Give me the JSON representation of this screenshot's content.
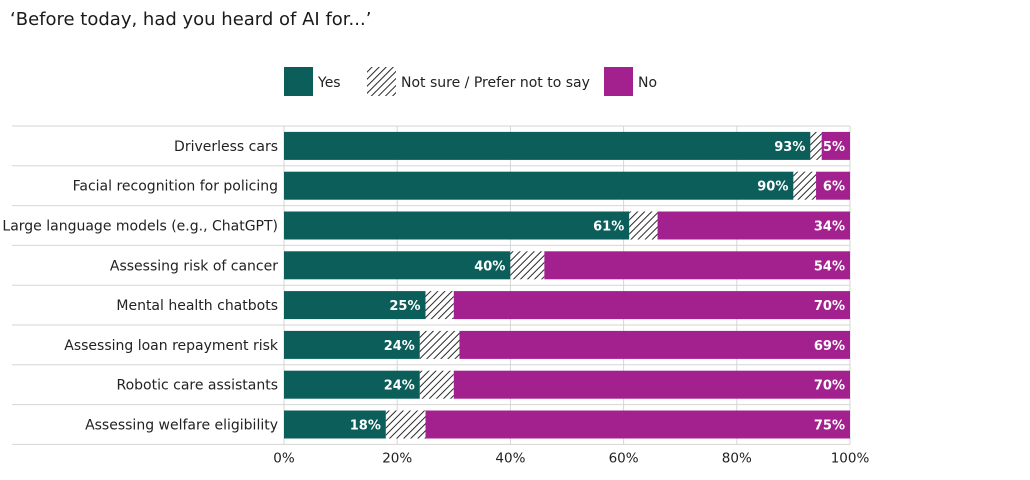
{
  "chart_data": {
    "type": "bar",
    "orientation": "horizontal",
    "stacked": true,
    "title": "‘Before today, had you heard of AI for...’",
    "categories": [
      "Driverless cars",
      "Facial recognition for policing",
      "Large language models (e.g., ChatGPT)",
      "Assessing risk of cancer",
      "Mental health chatbots",
      "Assessing loan repayment risk",
      "Robotic care assistants",
      "Assessing welfare eligibility"
    ],
    "series": [
      {
        "name": "Yes",
        "color": "#0b5e5a",
        "pattern": "solid",
        "values": [
          93,
          90,
          61,
          40,
          25,
          24,
          24,
          18
        ],
        "labels": [
          "93%",
          "90%",
          "61%",
          "40%",
          "25%",
          "24%",
          "24%",
          "18%"
        ]
      },
      {
        "name": "Not sure / Prefer not to say",
        "color": "#222222",
        "pattern": "hatched",
        "values": [
          2,
          4,
          5,
          6,
          5,
          7,
          6,
          7
        ],
        "labels": [
          "",
          "",
          "",
          "",
          "",
          "",
          "",
          ""
        ]
      },
      {
        "name": "No",
        "color": "#a3218f",
        "pattern": "solid",
        "values": [
          5,
          6,
          34,
          54,
          70,
          69,
          70,
          75
        ],
        "labels": [
          "5%",
          "6%",
          "34%",
          "54%",
          "70%",
          "69%",
          "70%",
          "75%"
        ]
      }
    ],
    "x_ticks": [
      "0%",
      "20%",
      "40%",
      "60%",
      "80%",
      "100%"
    ],
    "xlim": [
      0,
      100
    ],
    "grid": true,
    "legend_position": "top"
  }
}
